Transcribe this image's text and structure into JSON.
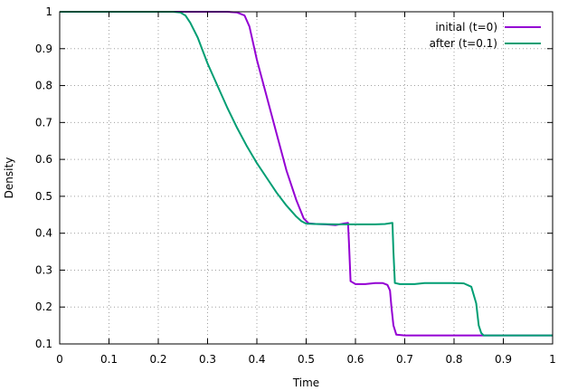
{
  "chart_data": {
    "type": "line",
    "title": "",
    "xlabel": "Time",
    "ylabel": "Density",
    "xlim": [
      0,
      1
    ],
    "ylim": [
      0.1,
      1
    ],
    "grid": true,
    "legend_position": "top-right",
    "x_ticks": [
      "0",
      "0.1",
      "0.2",
      "0.3",
      "0.4",
      "0.5",
      "0.6",
      "0.7",
      "0.8",
      "0.9",
      "1"
    ],
    "y_ticks": [
      "0.1",
      "0.2",
      "0.3",
      "0.4",
      "0.5",
      "0.6",
      "0.7",
      "0.8",
      "0.9",
      "1"
    ],
    "series": [
      {
        "name": "initial (t=0)",
        "color": "#9400d3",
        "points": [
          [
            0,
            1
          ],
          [
            0.34,
            1
          ],
          [
            0.36,
            0.998
          ],
          [
            0.375,
            0.99
          ],
          [
            0.385,
            0.96
          ],
          [
            0.4,
            0.87
          ],
          [
            0.42,
            0.77
          ],
          [
            0.44,
            0.67
          ],
          [
            0.46,
            0.57
          ],
          [
            0.48,
            0.49
          ],
          [
            0.495,
            0.44
          ],
          [
            0.505,
            0.427
          ],
          [
            0.52,
            0.425
          ],
          [
            0.54,
            0.424
          ],
          [
            0.56,
            0.422
          ],
          [
            0.575,
            0.426
          ],
          [
            0.585,
            0.428
          ],
          [
            0.587,
            0.37
          ],
          [
            0.59,
            0.27
          ],
          [
            0.6,
            0.262
          ],
          [
            0.62,
            0.262
          ],
          [
            0.64,
            0.265
          ],
          [
            0.655,
            0.265
          ],
          [
            0.665,
            0.26
          ],
          [
            0.67,
            0.245
          ],
          [
            0.673,
            0.2
          ],
          [
            0.677,
            0.15
          ],
          [
            0.683,
            0.125
          ],
          [
            0.7,
            0.123
          ],
          [
            0.8,
            0.123
          ],
          [
            0.9,
            0.123
          ],
          [
            1.0,
            0.123
          ]
        ]
      },
      {
        "name": "after (t=0.1)",
        "color": "#009e73",
        "points": [
          [
            0,
            1
          ],
          [
            0.23,
            1
          ],
          [
            0.245,
            0.998
          ],
          [
            0.255,
            0.99
          ],
          [
            0.265,
            0.97
          ],
          [
            0.28,
            0.93
          ],
          [
            0.3,
            0.86
          ],
          [
            0.32,
            0.8
          ],
          [
            0.34,
            0.74
          ],
          [
            0.36,
            0.685
          ],
          [
            0.38,
            0.635
          ],
          [
            0.4,
            0.59
          ],
          [
            0.42,
            0.55
          ],
          [
            0.44,
            0.51
          ],
          [
            0.46,
            0.475
          ],
          [
            0.48,
            0.445
          ],
          [
            0.49,
            0.433
          ],
          [
            0.5,
            0.426
          ],
          [
            0.52,
            0.425
          ],
          [
            0.56,
            0.424
          ],
          [
            0.6,
            0.424
          ],
          [
            0.64,
            0.424
          ],
          [
            0.66,
            0.425
          ],
          [
            0.675,
            0.428
          ],
          [
            0.677,
            0.35
          ],
          [
            0.68,
            0.265
          ],
          [
            0.69,
            0.262
          ],
          [
            0.7,
            0.262
          ],
          [
            0.72,
            0.262
          ],
          [
            0.74,
            0.265
          ],
          [
            0.8,
            0.265
          ],
          [
            0.82,
            0.264
          ],
          [
            0.835,
            0.255
          ],
          [
            0.845,
            0.21
          ],
          [
            0.85,
            0.15
          ],
          [
            0.855,
            0.13
          ],
          [
            0.86,
            0.123
          ],
          [
            0.9,
            0.123
          ],
          [
            1.0,
            0.123
          ]
        ]
      }
    ]
  }
}
